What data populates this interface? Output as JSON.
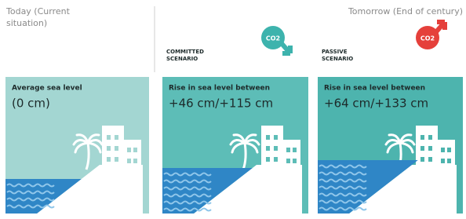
{
  "header": {
    "today": "Today (Current situation)",
    "tomorrow": "Tomorrow (End of century)"
  },
  "panels": [
    {
      "caption": "Average sea level",
      "value": "(0 cm)"
    },
    {
      "scenario": "COMMITTED SCENARIO",
      "icon_label": "CO2",
      "caption": "Rise in sea level between",
      "value": "+46 cm/+115 cm"
    },
    {
      "scenario": "PASSIVE SCENARIO",
      "icon_label": "CO2",
      "caption": "Rise in sea level between",
      "value": "+64 cm/+133 cm"
    }
  ]
}
